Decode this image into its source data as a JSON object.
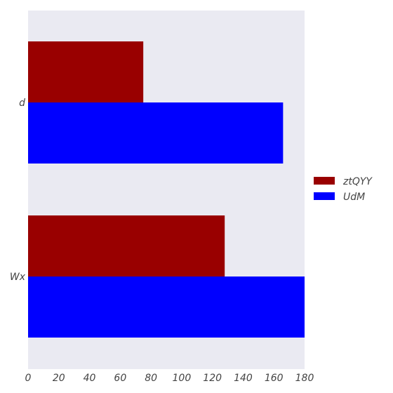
{
  "chart_data": {
    "type": "bar",
    "orientation": "horizontal",
    "categories": [
      "d",
      "Wx"
    ],
    "series": [
      {
        "name": "ztQYY",
        "color": "#990000",
        "values": [
          75,
          128
        ]
      },
      {
        "name": "UdM",
        "color": "#0000ff",
        "values": [
          166,
          180
        ]
      }
    ],
    "xlim": [
      0,
      180
    ],
    "xticks": [
      0,
      20,
      40,
      60,
      80,
      100,
      120,
      140,
      160,
      180
    ],
    "grid": false,
    "legend_position": "right",
    "plot_background": "#eaeaf2",
    "title": "",
    "xlabel": "",
    "ylabel": ""
  }
}
